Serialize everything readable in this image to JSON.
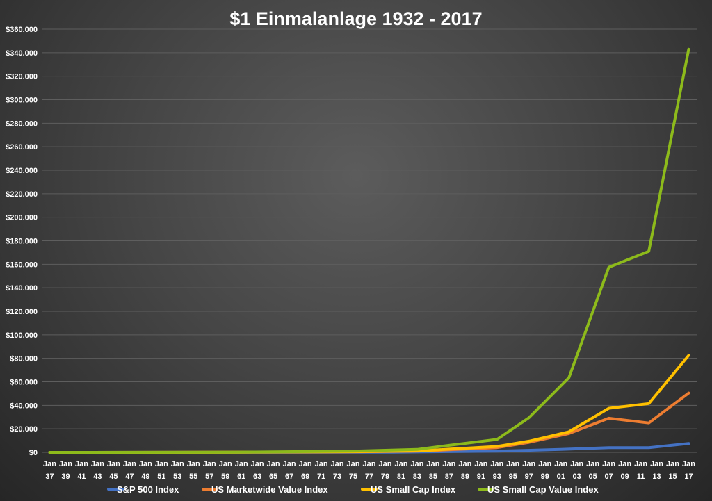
{
  "chart_data": {
    "type": "line",
    "title": "$1 Einmalanlage 1932 - 2017",
    "xlabel": "",
    "ylabel": "",
    "ylim": [
      0,
      360000
    ],
    "grid": true,
    "legend_position": "bottom",
    "y_ticks": [
      0,
      20000,
      40000,
      60000,
      80000,
      100000,
      120000,
      140000,
      160000,
      180000,
      200000,
      220000,
      240000,
      260000,
      280000,
      300000,
      320000,
      340000,
      360000
    ],
    "y_tick_labels": [
      "$0",
      "$20.000",
      "$40.000",
      "$60.000",
      "$80.000",
      "$100.000",
      "$120.000",
      "$140.000",
      "$160.000",
      "$180.000",
      "$200.000",
      "$220.000",
      "$240.000",
      "$260.000",
      "$280.000",
      "$300.000",
      "$320.000",
      "$340.000",
      "$360.000"
    ],
    "x_tick_labels": [
      [
        "Jan",
        "37"
      ],
      [
        "Jan",
        "39"
      ],
      [
        "Jan",
        "41"
      ],
      [
        "Jan",
        "43"
      ],
      [
        "Jan",
        "45"
      ],
      [
        "Jan",
        "47"
      ],
      [
        "Jan",
        "49"
      ],
      [
        "Jan",
        "51"
      ],
      [
        "Jan",
        "53"
      ],
      [
        "Jan",
        "55"
      ],
      [
        "Jan",
        "57"
      ],
      [
        "Jan",
        "59"
      ],
      [
        "Jan",
        "61"
      ],
      [
        "Jan",
        "63"
      ],
      [
        "Jan",
        "65"
      ],
      [
        "Jan",
        "67"
      ],
      [
        "Jan",
        "69"
      ],
      [
        "Jan",
        "71"
      ],
      [
        "Jan",
        "73"
      ],
      [
        "Jan",
        "75"
      ],
      [
        "Jan",
        "77"
      ],
      [
        "Jan",
        "79"
      ],
      [
        "Jan",
        "81"
      ],
      [
        "Jan",
        "83"
      ],
      [
        "Jan",
        "85"
      ],
      [
        "Jan",
        "87"
      ],
      [
        "Jan",
        "89"
      ],
      [
        "Jan",
        "91"
      ],
      [
        "Jan",
        "93"
      ],
      [
        "Jan",
        "95"
      ],
      [
        "Jan",
        "97"
      ],
      [
        "Jan",
        "99"
      ],
      [
        "Jan",
        "01"
      ],
      [
        "Jan",
        "03"
      ],
      [
        "Jan",
        "05"
      ],
      [
        "Jan",
        "07"
      ],
      [
        "Jan",
        "09"
      ],
      [
        "Jan",
        "11"
      ],
      [
        "Jan",
        "13"
      ],
      [
        "Jan",
        "15"
      ],
      [
        "Jan",
        "17"
      ]
    ],
    "x_values": [
      1937,
      1939,
      1941,
      1943,
      1945,
      1947,
      1949,
      1951,
      1953,
      1955,
      1957,
      1959,
      1961,
      1963,
      1965,
      1967,
      1969,
      1971,
      1973,
      1975,
      1977,
      1979,
      1981,
      1983,
      1985,
      1987,
      1989,
      1991,
      1993,
      1995,
      1997,
      1999,
      2001,
      2003,
      2005,
      2007,
      2009,
      2011,
      2013,
      2015,
      2017
    ],
    "series": [
      {
        "name": "S&P 500 Index",
        "color": "#4472c4",
        "x": [
          1937,
          1960,
          1980,
          1993,
          2001,
          2007,
          2012,
          2017
        ],
        "values": [
          0,
          60,
          200,
          1000,
          2500,
          4000,
          4000,
          7500
        ]
      },
      {
        "name": "US Marketwide Value Index",
        "color": "#ed7d31",
        "x": [
          1937,
          1960,
          1975,
          1983,
          1993,
          1997,
          2002,
          2007,
          2012,
          2017
        ],
        "values": [
          0,
          100,
          500,
          1000,
          4000,
          8500,
          16000,
          29000,
          25000,
          50500
        ]
      },
      {
        "name": "US Small Cap Index",
        "color": "#ffc000",
        "x": [
          1937,
          1960,
          1975,
          1983,
          1993,
          1997,
          2002,
          2007,
          2012,
          2017
        ],
        "values": [
          0,
          100,
          600,
          1200,
          5000,
          9500,
          17500,
          37500,
          41500,
          82500
        ]
      },
      {
        "name": "US Small Cap Value Index",
        "color": "#8dba1b",
        "x": [
          1937,
          1960,
          1975,
          1983,
          1987,
          1993,
          1997,
          2002,
          2007,
          2012,
          2017
        ],
        "values": [
          0,
          100,
          1000,
          2500,
          6000,
          11000,
          29500,
          63500,
          157500,
          171000,
          343000
        ]
      }
    ]
  }
}
